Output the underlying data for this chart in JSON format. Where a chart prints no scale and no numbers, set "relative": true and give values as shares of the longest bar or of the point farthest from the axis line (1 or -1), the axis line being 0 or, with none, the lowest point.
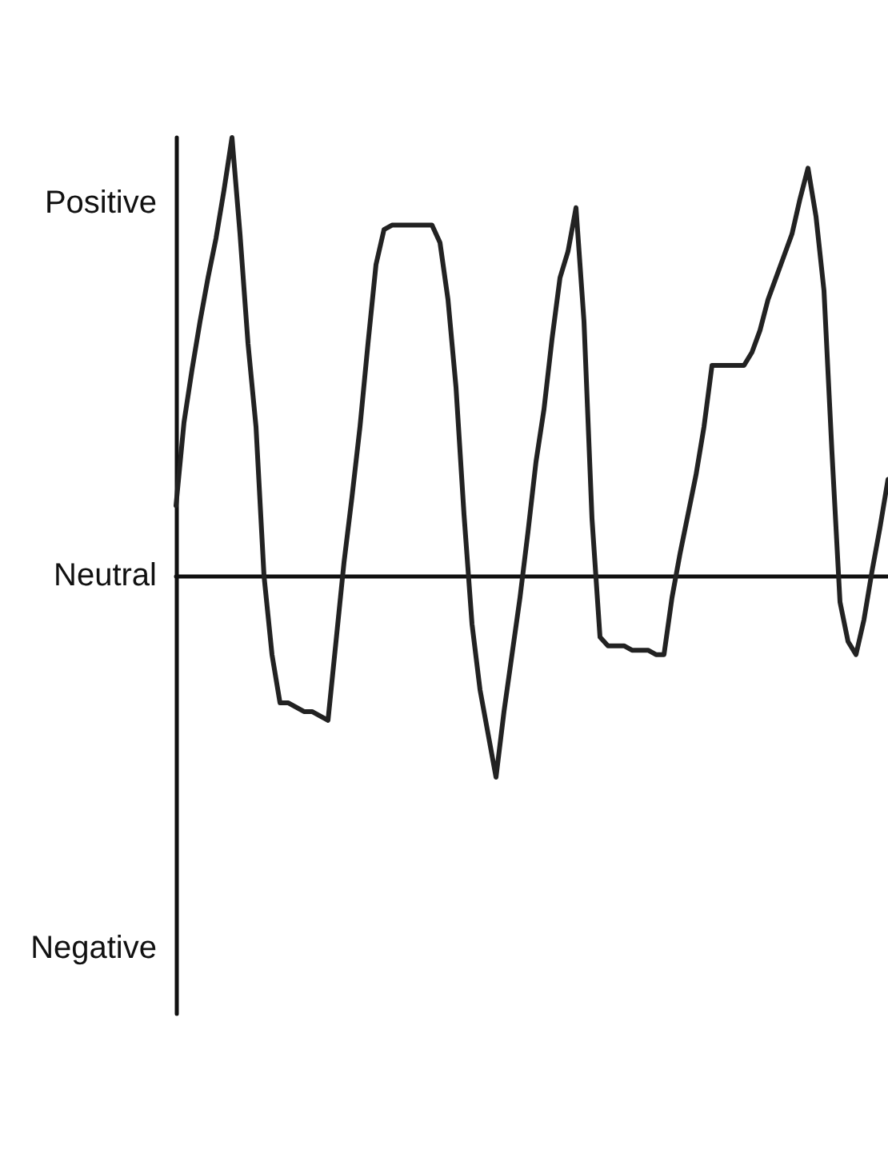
{
  "chart_data": {
    "type": "line",
    "relative": true,
    "categories": [
      null,
      null,
      null,
      null,
      null,
      null,
      null,
      null,
      null,
      null,
      null,
      null,
      null,
      null,
      null,
      null,
      null,
      null,
      null,
      null,
      null,
      null,
      null,
      null,
      null,
      null,
      null,
      null,
      null,
      null,
      null,
      null,
      null,
      null,
      null,
      null,
      null,
      null,
      null,
      null,
      null,
      null,
      null,
      null,
      null,
      null,
      null,
      null,
      null,
      null,
      null,
      null,
      null,
      null,
      null,
      null,
      null,
      null,
      null,
      null,
      null,
      null,
      null,
      null,
      null,
      null,
      null,
      null,
      null,
      null,
      null,
      null,
      null,
      null,
      null,
      null,
      null,
      null,
      null,
      null,
      null,
      null,
      null,
      null,
      null,
      null,
      null,
      null,
      null,
      null
    ],
    "values": [
      0.16,
      0.35,
      0.47,
      0.58,
      0.68,
      0.77,
      0.88,
      1,
      0.78,
      0.53,
      0.34,
      0,
      -0.18,
      -0.29,
      -0.29,
      -0.3,
      -0.31,
      -0.31,
      -0.32,
      -0.33,
      -0.15,
      0.03,
      0.18,
      0.34,
      0.53,
      0.71,
      0.79,
      0.8,
      0.8,
      0.8,
      0.8,
      0.8,
      0.8,
      0.76,
      0.63,
      0.43,
      0.14,
      -0.11,
      -0.26,
      -0.36,
      -0.46,
      -0.31,
      -0.18,
      -0.05,
      0.1,
      0.26,
      0.38,
      0.54,
      0.68,
      0.74,
      0.84,
      0.58,
      0.13,
      -0.14,
      -0.16,
      -0.16,
      -0.16,
      -0.17,
      -0.17,
      -0.17,
      -0.18,
      -0.18,
      -0.05,
      0.05,
      0.14,
      0.23,
      0.34,
      0.48,
      0.48,
      0.48,
      0.48,
      0.48,
      0.51,
      0.56,
      0.63,
      0.68,
      0.73,
      0.78,
      0.86,
      0.93,
      0.82,
      0.65,
      0.28,
      -0.06,
      -0.15,
      -0.18,
      -0.1,
      0.01,
      0.11,
      0.22
    ],
    "color": "#222222",
    "annotations": [
      "Positive",
      "Neutral",
      "Negative"
    ],
    "tick_labels": false,
    "grid": false,
    "marker": "none",
    "line_style": "solid"
  }
}
